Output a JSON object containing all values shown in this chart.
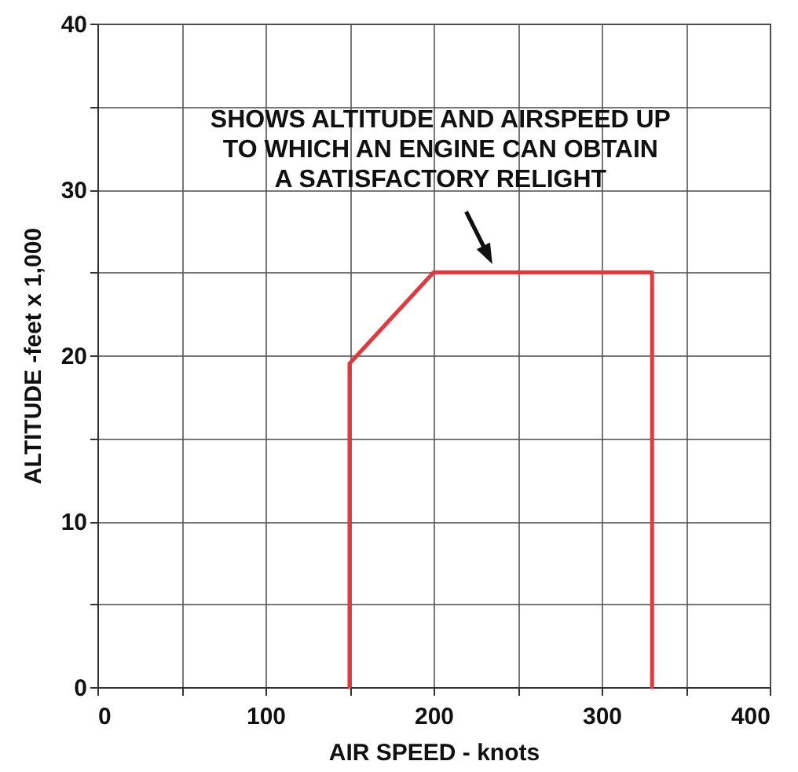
{
  "chart_data": {
    "type": "line",
    "xlabel": "AIR SPEED - knots",
    "ylabel": "ALTITUDE -feet x 1,000",
    "series": [
      {
        "color": "#e0393e",
        "x": [
          150,
          150,
          200,
          330,
          330
        ],
        "values": [
          0,
          19.5,
          25,
          25,
          0
        ]
      }
    ],
    "xlim": [
      0,
      400
    ],
    "xticks": [
      0,
      {
        "value": 50,
        "label": null
      },
      100,
      {
        "value": 150,
        "label": null
      },
      200,
      {
        "value": 250,
        "label": null
      },
      300,
      {
        "value": 350,
        "label": null
      },
      400
    ],
    "ylim": [
      0,
      40
    ],
    "yticks": [
      0,
      {
        "value": 5,
        "label": null
      },
      10,
      {
        "value": 15,
        "label": null
      },
      20,
      {
        "value": 25,
        "label": null
      },
      30,
      {
        "value": 35,
        "label": null
      },
      40
    ],
    "grid": true,
    "marker": "none",
    "line_style": "solid",
    "annotations": [
      {
        "text": "SHOWS ALTITUDE AND AIRSPEED UP TO WHICH AN ENGINE CAN OBTAIN A SATISFACTORY RELIGHT",
        "x": 235,
        "y": 25.5
      }
    ]
  }
}
